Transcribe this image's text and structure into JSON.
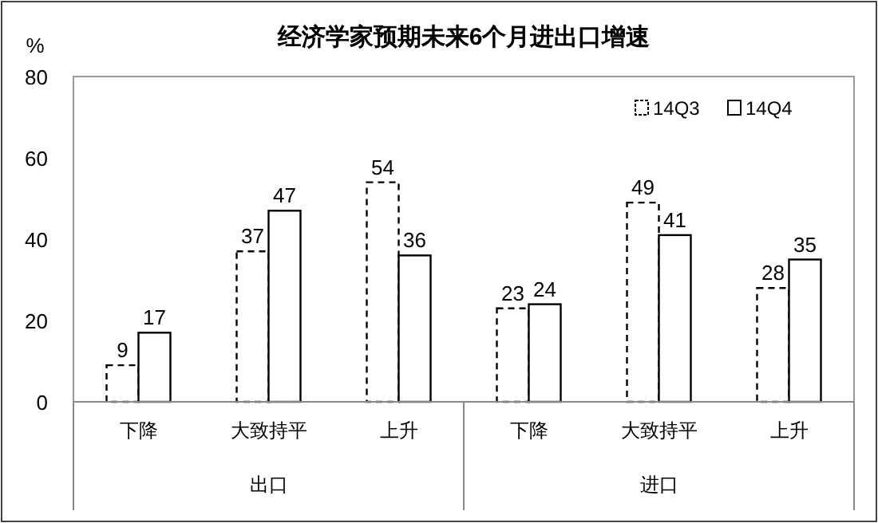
{
  "chart_data": {
    "type": "bar",
    "title": "经济学家预期未来6个月进出口增速",
    "ylabel": "%",
    "categories": [
      "下降",
      "大致持平",
      "上升",
      "下降",
      "大致持平",
      "上升"
    ],
    "series": [
      {
        "name": "14Q3",
        "color": "#000000",
        "line_style": "dashed",
        "values": [
          9,
          37,
          54,
          23,
          49,
          28
        ]
      },
      {
        "name": "14Q4",
        "color": "#000000",
        "line_style": "solid",
        "values": [
          17,
          47,
          36,
          24,
          41,
          35
        ]
      }
    ],
    "annotations": [
      "出口",
      "进口"
    ],
    "ylim": [
      0,
      80
    ],
    "yticks": [
      0,
      20,
      40,
      60,
      80
    ],
    "grid": false,
    "legend": "top right",
    "data_labels": true
  }
}
